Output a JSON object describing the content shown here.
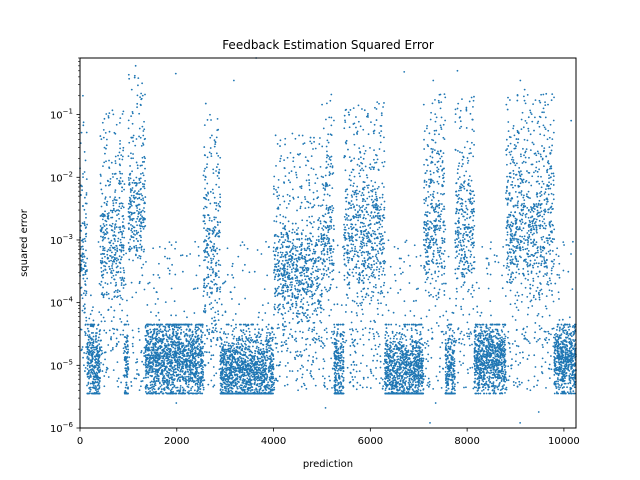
{
  "chart_data": {
    "type": "scatter",
    "title": "Feedback Estimation Squared Error",
    "xlabel": "prediction",
    "ylabel": "squared error",
    "xlim": [
      0,
      10250
    ],
    "ylim": [
      1e-06,
      0.8
    ],
    "yscale": "log",
    "grid": false,
    "marker_color": "#1f77b4",
    "x_ticks": [
      {
        "value": 0,
        "label": "0"
      },
      {
        "value": 2000,
        "label": "2000"
      },
      {
        "value": 4000,
        "label": "4000"
      },
      {
        "value": 6000,
        "label": "6000"
      },
      {
        "value": 8000,
        "label": "8000"
      },
      {
        "value": 10000,
        "label": "10000"
      }
    ],
    "y_ticks": [
      {
        "exp": -6,
        "value": 1e-06
      },
      {
        "exp": -5,
        "value": 1e-05
      },
      {
        "exp": -4,
        "value": 0.0001
      },
      {
        "exp": -3,
        "value": 0.001
      },
      {
        "exp": -2,
        "value": 0.01
      },
      {
        "exp": -1,
        "value": 0.1
      }
    ],
    "segments": [
      {
        "x_start": 0,
        "x_end": 150,
        "regime": "high",
        "log10_center": -3.3,
        "log10_spread": 0.7
      },
      {
        "x_start": 150,
        "x_end": 420,
        "regime": "low",
        "log10_center": -5.0,
        "log10_spread": 0.35
      },
      {
        "x_start": 420,
        "x_end": 920,
        "regime": "high",
        "log10_center": -3.1,
        "log10_spread": 0.6
      },
      {
        "x_start": 920,
        "x_end": 1000,
        "regime": "low",
        "log10_center": -5.0,
        "log10_spread": 0.35
      },
      {
        "x_start": 1000,
        "x_end": 1350,
        "regime": "high",
        "log10_center": -2.5,
        "log10_spread": 0.55
      },
      {
        "x_start": 1350,
        "x_end": 2550,
        "regime": "low",
        "log10_center": -4.9,
        "log10_spread": 0.35
      },
      {
        "x_start": 2550,
        "x_end": 2900,
        "regime": "high",
        "log10_center": -3.2,
        "log10_spread": 0.7
      },
      {
        "x_start": 2900,
        "x_end": 4000,
        "regime": "low",
        "log10_center": -5.1,
        "log10_spread": 0.35
      },
      {
        "x_start": 4000,
        "x_end": 5000,
        "regime": "high",
        "log10_center": -3.5,
        "log10_spread": 0.45
      },
      {
        "x_start": 5000,
        "x_end": 5250,
        "regime": "high",
        "log10_center": -2.8,
        "log10_spread": 0.6
      },
      {
        "x_start": 5250,
        "x_end": 5450,
        "regime": "low",
        "log10_center": -5.0,
        "log10_spread": 0.35
      },
      {
        "x_start": 5450,
        "x_end": 6300,
        "regime": "high",
        "log10_center": -3.0,
        "log10_spread": 0.6
      },
      {
        "x_start": 6300,
        "x_end": 7100,
        "regime": "low",
        "log10_center": -5.1,
        "log10_spread": 0.35
      },
      {
        "x_start": 7100,
        "x_end": 7550,
        "regime": "high",
        "log10_center": -2.8,
        "log10_spread": 0.65
      },
      {
        "x_start": 7550,
        "x_end": 7750,
        "regime": "low",
        "log10_center": -5.1,
        "log10_spread": 0.35
      },
      {
        "x_start": 7750,
        "x_end": 8150,
        "regime": "high",
        "log10_center": -2.9,
        "log10_spread": 0.6
      },
      {
        "x_start": 8150,
        "x_end": 8800,
        "regime": "low",
        "log10_center": -4.9,
        "log10_spread": 0.3
      },
      {
        "x_start": 8800,
        "x_end": 9800,
        "regime": "high",
        "log10_center": -2.8,
        "log10_spread": 0.65
      },
      {
        "x_start": 9800,
        "x_end": 10250,
        "regime": "low",
        "log10_center": -4.9,
        "log10_spread": 0.3
      }
    ],
    "outliers": [
      {
        "x": 60,
        "y": 0.2
      },
      {
        "x": 1150,
        "y": 0.6
      },
      {
        "x": 1980,
        "y": 0.45
      },
      {
        "x": 2600,
        "y": 0.15
      },
      {
        "x": 3180,
        "y": 0.35
      },
      {
        "x": 3640,
        "y": 0.8
      },
      {
        "x": 5500,
        "y": 0.12
      },
      {
        "x": 6700,
        "y": 0.48
      },
      {
        "x": 7300,
        "y": 0.35
      },
      {
        "x": 7800,
        "y": 0.5
      },
      {
        "x": 9100,
        "y": 0.35
      },
      {
        "x": 10150,
        "y": 0.08
      },
      {
        "x": 9480,
        "y": 1.8e-06
      },
      {
        "x": 1990,
        "y": 2.5e-06
      },
      {
        "x": 7350,
        "y": 2.5e-06
      }
    ]
  }
}
